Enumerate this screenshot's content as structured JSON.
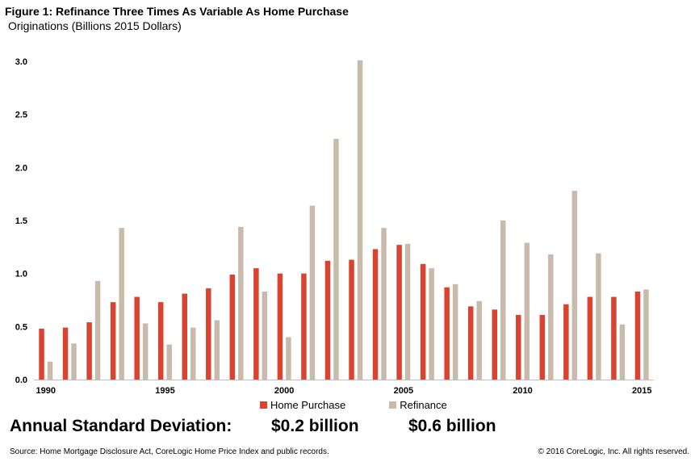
{
  "header": {
    "title": "Figure 1: Refinance Three Times As Variable As Home Purchase",
    "subtitle": "Originations (Billions 2015 Dollars)"
  },
  "chart_data": {
    "type": "bar",
    "title": "Figure 1: Refinance Three Times As Variable As Home Purchase",
    "subtitle": "Originations (Billions 2015 Dollars)",
    "xlabel": "",
    "ylabel": "",
    "ylim": [
      0,
      3.0
    ],
    "yticks": [
      "0.0",
      "0.5",
      "1.0",
      "1.5",
      "2.0",
      "2.5",
      "3.0"
    ],
    "xticks": [
      "1990",
      "1995",
      "2000",
      "2005",
      "2010",
      "2015"
    ],
    "categories": [
      "1990",
      "1991",
      "1992",
      "1993",
      "1994",
      "1995",
      "1996",
      "1997",
      "1998",
      "1999",
      "2000",
      "2001",
      "2002",
      "2003",
      "2004",
      "2005",
      "2006",
      "2007",
      "2008",
      "2009",
      "2010",
      "2011",
      "2012",
      "2013",
      "2014",
      "2015"
    ],
    "series": [
      {
        "name": "Home Purchase",
        "color": "#d9432f",
        "values": [
          0.48,
          0.49,
          0.54,
          0.73,
          0.78,
          0.73,
          0.81,
          0.86,
          0.99,
          1.05,
          1.0,
          1.0,
          1.12,
          1.13,
          1.23,
          1.27,
          1.09,
          0.87,
          0.69,
          0.66,
          0.61,
          0.61,
          0.71,
          0.78,
          0.78,
          0.83
        ]
      },
      {
        "name": "Refinance",
        "color": "#c9bbac",
        "values": [
          0.17,
          0.34,
          0.93,
          1.43,
          0.53,
          0.33,
          0.49,
          0.56,
          1.44,
          0.83,
          0.4,
          1.64,
          2.27,
          3.01,
          1.43,
          1.28,
          1.05,
          0.9,
          0.74,
          1.5,
          1.29,
          1.18,
          1.78,
          1.19,
          0.52,
          0.85
        ]
      }
    ],
    "grid": false,
    "legend": "bottom-center"
  },
  "legend": {
    "home_purchase": "Home Purchase",
    "refinance": "Refinance",
    "home_purchase_color": "#d9432f",
    "refinance_color": "#c9bbac"
  },
  "stddev": {
    "label": "Annual Standard Deviation:",
    "home_purchase_value": "$0.2 billion",
    "refinance_value": "$0.6 billion"
  },
  "footer": {
    "source": "Source: Home Mortgage Disclosure Act, CoreLogic Home Price Index and public records.",
    "copyright": "© 2016 CoreLogic, Inc.  All rights reserved."
  }
}
